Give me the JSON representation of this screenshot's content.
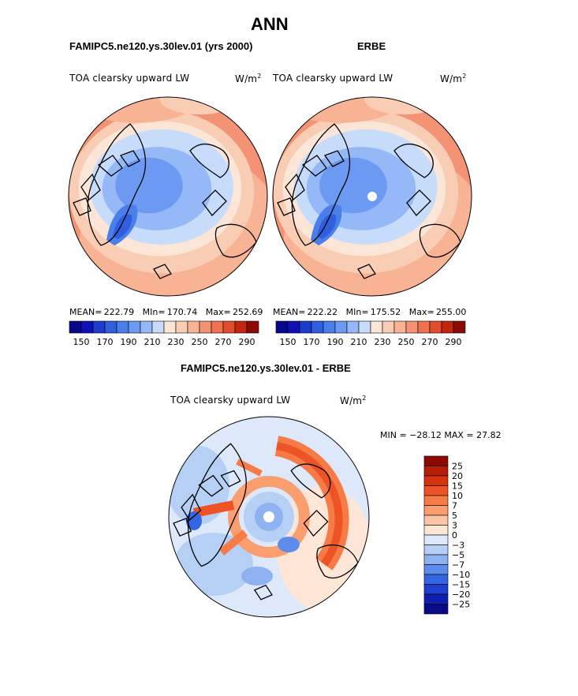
{
  "figure": {
    "title": "ANN",
    "left_panel_title": "FAMIPC5.ne120.ys.30lev.01 (yrs 2000)",
    "right_panel_title": "ERBE",
    "diff_panel_title": "FAMIPC5.ne120.ys.30lev.01 - ERBE"
  },
  "panels": {
    "left": {
      "variable": "TOA clearsky upward LW",
      "units_base": "W/m",
      "units_exp": "2",
      "stats": {
        "mean_label": "MEAN=",
        "mean": "222.79",
        "min_label": "MIn=",
        "min": "170.74",
        "max_label": "Max=",
        "max": "252.69"
      }
    },
    "right": {
      "variable": "TOA clearsky upward LW",
      "units_base": "W/m",
      "units_exp": "2",
      "stats": {
        "mean_label": "MEAN=",
        "mean": "222.22",
        "min_label": "MIn=",
        "min": "175.52",
        "max_label": "Max=",
        "max": "255.00"
      }
    },
    "diff": {
      "variable": "TOA clearsky upward LW",
      "units_base": "W/m",
      "units_exp": "2",
      "minmax_text": "MIN = −28.12 MAX =  27.82"
    }
  },
  "chart_data": [
    {
      "type": "heatmap",
      "projection": "north polar stereographic",
      "title": "FAMIPC5.ne120.ys.30lev.01 (yrs 2000)",
      "variable": "TOA clearsky upward LW",
      "units": "W/m2",
      "mean": 222.79,
      "min": 170.74,
      "max": 252.69,
      "colorbar": {
        "levels": [
          140,
          150,
          160,
          170,
          180,
          190,
          200,
          210,
          220,
          230,
          240,
          250,
          260,
          270,
          280,
          290,
          300
        ],
        "tick_labels": [
          "150",
          "170",
          "190",
          "210",
          "230",
          "250",
          "270",
          "290"
        ],
        "colors": [
          "#08088a",
          "#1010b8",
          "#1e3ccc",
          "#2f5fde",
          "#4a7fea",
          "#6c9af2",
          "#95b8f7",
          "#c7dcfb",
          "#fbe5d6",
          "#f9cdb4",
          "#f7b394",
          "#f39374",
          "#ee7152",
          "#e24c2f",
          "#c2260f",
          "#8c0a03"
        ]
      }
    },
    {
      "type": "heatmap",
      "projection": "north polar stereographic",
      "title": "ERBE",
      "variable": "TOA clearsky upward LW",
      "units": "W/m2",
      "mean": 222.22,
      "min": 175.52,
      "max": 255.0,
      "colorbar": {
        "levels": [
          140,
          150,
          160,
          170,
          180,
          190,
          200,
          210,
          220,
          230,
          240,
          250,
          260,
          270,
          280,
          290,
          300
        ],
        "tick_labels": [
          "150",
          "170",
          "190",
          "210",
          "230",
          "250",
          "270",
          "290"
        ],
        "colors": [
          "#08088a",
          "#1010b8",
          "#1e3ccc",
          "#2f5fde",
          "#4a7fea",
          "#6c9af2",
          "#95b8f7",
          "#c7dcfb",
          "#fbe5d6",
          "#f9cdb4",
          "#f7b394",
          "#f39374",
          "#ee7152",
          "#e24c2f",
          "#c2260f",
          "#8c0a03"
        ]
      }
    },
    {
      "type": "heatmap",
      "projection": "north polar stereographic",
      "title": "FAMIPC5.ne120.ys.30lev.01 - ERBE",
      "variable": "TOA clearsky upward LW",
      "units": "W/m2",
      "min": -28.12,
      "max": 27.82,
      "colorbar": {
        "orientation": "vertical",
        "tick_labels": [
          "25",
          "20",
          "15",
          "10",
          "7",
          "5",
          "3",
          "0",
          "−3",
          "−5",
          "−7",
          "−10",
          "−15",
          "−20",
          "−25"
        ],
        "colors": [
          "#8c0a03",
          "#b71c07",
          "#d7330f",
          "#ee5326",
          "#f77b47",
          "#fa9e70",
          "#fcc4a4",
          "#fde6d6",
          "#dde9fa",
          "#b6cff5",
          "#8eb2f0",
          "#5e8cea",
          "#3466e2",
          "#1d3fd0",
          "#0f1fb0",
          "#080a88"
        ]
      }
    }
  ]
}
